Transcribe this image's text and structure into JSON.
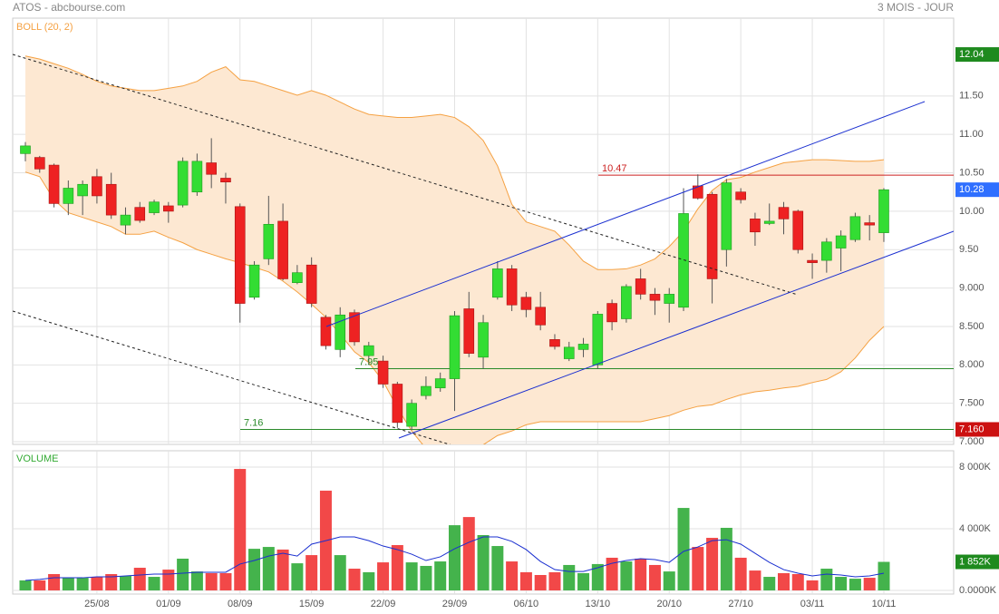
{
  "header": {
    "title": "ATOS - abcbourse.com",
    "period": "3 MOIS - JOUR"
  },
  "chart_data": [
    {
      "type": "candlestick",
      "categories": [
        null,
        null,
        null,
        null,
        null,
        "25/08",
        null,
        null,
        null,
        null,
        "01/09",
        null,
        null,
        null,
        null,
        "08/09",
        null,
        null,
        null,
        null,
        "15/09",
        null,
        null,
        null,
        null,
        "22/09",
        null,
        null,
        null,
        null,
        "29/09",
        null,
        null,
        null,
        null,
        "06/10",
        null,
        null,
        null,
        null,
        "13/10",
        null,
        null,
        null,
        null,
        "20/10",
        null,
        null,
        null,
        null,
        "27/10",
        null,
        null,
        null,
        null,
        "03/11",
        null,
        null,
        null,
        null,
        "10/11"
      ],
      "open": [
        10.75,
        10.7,
        10.6,
        10.1,
        10.2,
        10.45,
        10.35,
        9.82,
        10.05,
        9.98,
        10.07,
        10.08,
        10.25,
        10.63,
        10.43,
        10.06,
        8.88,
        9.38,
        9.87,
        9.07,
        9.3,
        8.62,
        8.2,
        8.68,
        8.12,
        8.05,
        7.75,
        7.2,
        7.6,
        7.7,
        7.82,
        8.73,
        8.1,
        8.88,
        9.25,
        8.88,
        8.75,
        8.33,
        8.08,
        8.2,
        8.0,
        8.8,
        8.6,
        9.12,
        8.92,
        8.8,
        8.75,
        10.33,
        10.22,
        9.5,
        10.25,
        9.9,
        9.84,
        10.05,
        10.0,
        9.36,
        9.36,
        9.52,
        9.63,
        9.85,
        9.72
      ],
      "high": [
        10.9,
        10.72,
        10.62,
        10.4,
        10.4,
        10.55,
        10.5,
        10.05,
        10.12,
        10.15,
        10.12,
        10.7,
        10.75,
        10.95,
        10.5,
        10.1,
        9.35,
        10.2,
        10.1,
        9.3,
        9.4,
        8.65,
        8.75,
        8.72,
        8.3,
        8.12,
        7.78,
        7.55,
        7.85,
        7.9,
        8.7,
        8.95,
        8.65,
        9.35,
        9.3,
        8.95,
        8.95,
        8.4,
        8.3,
        8.35,
        8.7,
        8.85,
        9.05,
        9.25,
        9.0,
        9.0,
        10.3,
        10.48,
        10.25,
        10.42,
        10.3,
        9.98,
        10.1,
        10.12,
        10.02,
        9.45,
        9.65,
        9.75,
        9.98,
        9.95,
        10.3
      ],
      "low": [
        10.65,
        10.5,
        10.05,
        9.95,
        9.95,
        10.1,
        9.9,
        9.7,
        9.85,
        9.95,
        9.85,
        10.05,
        10.2,
        10.3,
        10.1,
        8.55,
        8.85,
        9.3,
        9.1,
        9.05,
        8.75,
        8.2,
        8.1,
        8.25,
        8.0,
        7.7,
        7.18,
        7.15,
        7.55,
        7.65,
        7.4,
        8.1,
        7.95,
        8.85,
        8.7,
        8.62,
        8.45,
        8.2,
        8.05,
        8.1,
        7.95,
        8.45,
        8.55,
        8.85,
        8.65,
        8.55,
        8.7,
        10.15,
        8.8,
        9.28,
        10.1,
        9.55,
        9.82,
        9.7,
        9.45,
        9.12,
        9.2,
        9.22,
        9.6,
        9.62,
        9.6
      ],
      "close": [
        10.85,
        10.55,
        10.1,
        10.3,
        10.35,
        10.2,
        9.95,
        9.95,
        9.88,
        10.12,
        10.0,
        10.65,
        10.65,
        10.48,
        10.38,
        8.8,
        9.3,
        9.83,
        9.12,
        9.2,
        8.8,
        8.25,
        8.65,
        8.3,
        8.25,
        7.75,
        7.25,
        7.5,
        7.72,
        7.82,
        8.64,
        8.15,
        8.55,
        9.25,
        8.78,
        8.72,
        8.52,
        8.24,
        8.23,
        8.27,
        8.66,
        8.56,
        9.02,
        8.92,
        8.84,
        8.92,
        9.97,
        10.17,
        9.12,
        10.37,
        10.15,
        9.73,
        9.87,
        9.9,
        9.5,
        9.33,
        9.6,
        9.68,
        9.93,
        9.82,
        10.28
      ],
      "up_color": "#33dd33",
      "down_color": "#ee2222",
      "bands": {
        "name": "BOLL (20, 2)",
        "color": "#f5a142",
        "fill": "#fde8d2",
        "upper": [
          12.02,
          11.98,
          11.92,
          11.86,
          11.78,
          11.69,
          11.63,
          11.6,
          11.57,
          11.57,
          11.6,
          11.63,
          11.69,
          11.81,
          11.88,
          11.71,
          11.69,
          11.63,
          11.57,
          11.51,
          11.57,
          11.51,
          11.42,
          11.33,
          11.26,
          11.24,
          11.22,
          11.22,
          11.24,
          11.26,
          11.22,
          11.1,
          10.92,
          10.59,
          10.09,
          9.86,
          9.8,
          9.74,
          9.56,
          9.35,
          9.24,
          9.24,
          9.25,
          9.3,
          9.38,
          9.54,
          9.74,
          10.03,
          10.27,
          10.41,
          10.44,
          10.51,
          10.57,
          10.63,
          10.65,
          10.67,
          10.67,
          10.66,
          10.65,
          10.65,
          10.67
        ],
        "lower": [
          10.51,
          10.45,
          10.15,
          9.98,
          9.92,
          9.86,
          9.8,
          9.7,
          9.7,
          9.74,
          9.66,
          9.59,
          9.5,
          9.44,
          9.38,
          9.33,
          9.27,
          9.21,
          9.09,
          8.95,
          8.79,
          8.62,
          8.4,
          8.17,
          8.03,
          7.79,
          7.44,
          7.14,
          6.91,
          6.79,
          6.79,
          6.85,
          6.96,
          7.08,
          7.14,
          7.22,
          7.26,
          7.26,
          7.26,
          7.26,
          7.26,
          7.26,
          7.26,
          7.26,
          7.3,
          7.34,
          7.41,
          7.46,
          7.48,
          7.55,
          7.61,
          7.65,
          7.67,
          7.7,
          7.72,
          7.77,
          7.81,
          7.91,
          8.09,
          8.32,
          8.5
        ]
      },
      "levels": [
        {
          "value": 10.47,
          "color": "#cc2222"
        },
        {
          "value": 7.95,
          "color": "#2a8a2a"
        },
        {
          "value": 7.16,
          "color": "#2a8a2a"
        }
      ],
      "markers": [
        {
          "value": 12.04,
          "color": "#1e8a1e"
        },
        {
          "value": 10.28,
          "color": "#2f6fff"
        },
        {
          "value": 7.16,
          "label": "7.160",
          "color": "#cc1111"
        }
      ],
      "ylim": [
        6.965,
        12.513
      ],
      "yticks": [
        {
          "value": 7.0,
          "label": "7.000"
        },
        {
          "value": 7.5,
          "label": "7.500"
        },
        {
          "value": 8.0,
          "label": "8.000"
        },
        {
          "value": 8.5,
          "label": "8.500"
        },
        {
          "value": 9.0,
          "label": "9.000"
        },
        {
          "value": 9.5,
          "label": "9.50"
        },
        {
          "value": 10.0,
          "label": "10.00"
        },
        {
          "value": 10.5,
          "label": "10.50"
        },
        {
          "value": 11.0,
          "label": "11.00"
        },
        {
          "value": 11.5,
          "label": "11.50"
        }
      ],
      "grid": true
    },
    {
      "type": "bar",
      "title": "VOLUME",
      "values": [
        650,
        650,
        1060,
        820,
        820,
        880,
        1060,
        940,
        1470,
        880,
        1350,
        2060,
        1230,
        1120,
        1120,
        7880,
        2700,
        2820,
        2650,
        1760,
        2290,
        6470,
        2290,
        1410,
        1180,
        1820,
        2940,
        1820,
        1590,
        1880,
        4230,
        4760,
        3590,
        2880,
        1880,
        1180,
        1000,
        1180,
        1650,
        1120,
        1710,
        2120,
        1880,
        2060,
        1650,
        1230,
        5350,
        2820,
        3410,
        4060,
        2120,
        1290,
        880,
        1120,
        1060,
        650,
        1410,
        880,
        760,
        820,
        1852
      ],
      "up_color": "#44b34c",
      "down_color": "#f24848",
      "ma": {
        "color": "#1a2fd0",
        "values": [
          650,
          710,
          820,
          820,
          820,
          880,
          880,
          940,
          1000,
          1060,
          1060,
          1120,
          1180,
          1180,
          1180,
          1710,
          1940,
          2230,
          2410,
          2230,
          3000,
          3230,
          3470,
          3470,
          3230,
          2880,
          2650,
          2350,
          1940,
          2180,
          2700,
          3120,
          3470,
          3470,
          3180,
          2650,
          1880,
          1350,
          1230,
          1230,
          1470,
          1760,
          1940,
          2060,
          2000,
          1820,
          2530,
          2820,
          3230,
          3290,
          3000,
          2410,
          1820,
          1350,
          1120,
          940,
          1060,
          1000,
          880,
          940,
          1120
        ]
      },
      "marker": {
        "value": 1852,
        "label": "1 852K",
        "color": "#1e8a1e"
      },
      "ylim": [
        0,
        9060
      ],
      "yticks": [
        {
          "value": 0,
          "label": "0.0000K"
        },
        {
          "value": 4000,
          "label": "4 000K"
        },
        {
          "value": 8000,
          "label": "8 000K"
        }
      ],
      "grid": true
    }
  ]
}
